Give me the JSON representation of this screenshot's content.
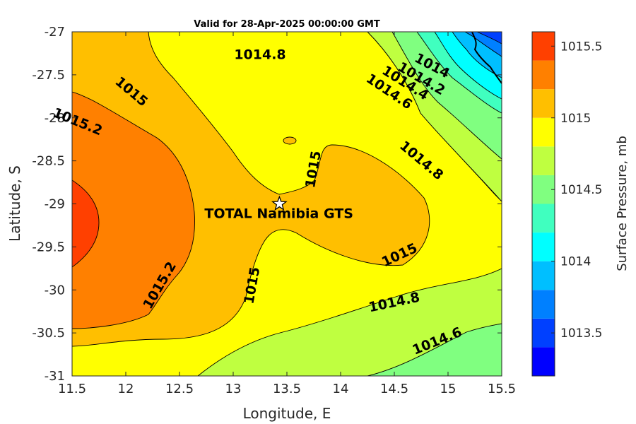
{
  "chart_data": {
    "type": "filled contour map",
    "title": "Valid for 28-Apr-2025 00:00:00 GMT",
    "xlabel": "Longitude, E",
    "ylabel": "Latitude, S",
    "xlim": [
      11.5,
      15.5
    ],
    "ylim": [
      -31,
      -27
    ],
    "xticks": [
      "11.5",
      "12",
      "12.5",
      "13",
      "13.5",
      "14",
      "14.5",
      "15",
      "15.5"
    ],
    "yticks": [
      "-27",
      "-27.5",
      "-28",
      "-28.5",
      "-29",
      "-29.5",
      "-30",
      "-30.5",
      "-31"
    ],
    "colorbar": {
      "label": "Surface Pressure, mb",
      "range": [
        1013.2,
        1015.6
      ],
      "ticks": [
        "1013.5",
        "1014",
        "1014.5",
        "1015",
        "1015.5"
      ],
      "levels": [
        {
          "from": 1013.2,
          "to": 1013.4,
          "color": "#0000ff"
        },
        {
          "from": 1013.4,
          "to": 1013.6,
          "color": "#0040ff"
        },
        {
          "from": 1013.6,
          "to": 1013.8,
          "color": "#0080ff"
        },
        {
          "from": 1013.8,
          "to": 1014.0,
          "color": "#00bfff"
        },
        {
          "from": 1014.0,
          "to": 1014.2,
          "color": "#00ffff"
        },
        {
          "from": 1014.2,
          "to": 1014.4,
          "color": "#40ffbf"
        },
        {
          "from": 1014.4,
          "to": 1014.6,
          "color": "#80ff80"
        },
        {
          "from": 1014.6,
          "to": 1014.8,
          "color": "#bfff40"
        },
        {
          "from": 1014.8,
          "to": 1015.0,
          "color": "#ffff00"
        },
        {
          "from": 1015.0,
          "to": 1015.2,
          "color": "#ffbf00"
        },
        {
          "from": 1015.2,
          "to": 1015.4,
          "color": "#ff8000"
        },
        {
          "from": 1015.4,
          "to": 1015.6,
          "color": "#ff4000"
        },
        {
          "from": 1015.6,
          "to": 1015.8,
          "color": "#ff0000"
        }
      ]
    },
    "contour_labels": [
      {
        "text": "1014.8",
        "lon": 13.25,
        "lat": -27.27
      },
      {
        "text": "1014",
        "lon": 14.85,
        "lat": -27.4
      },
      {
        "text": "1014.2",
        "lon": 14.75,
        "lat": -27.55
      },
      {
        "text": "1014.4",
        "lon": 14.6,
        "lat": -27.6
      },
      {
        "text": "1014.6",
        "lon": 14.45,
        "lat": -27.7
      },
      {
        "text": "1015",
        "lon": 12.05,
        "lat": -27.7
      },
      {
        "text": "1015.2",
        "lon": 11.55,
        "lat": -28.05
      },
      {
        "text": "1015",
        "lon": 13.75,
        "lat": -28.6
      },
      {
        "text": "1014.8",
        "lon": 14.75,
        "lat": -28.5
      },
      {
        "text": "1015",
        "lon": 14.55,
        "lat": -29.6
      },
      {
        "text": "1015.2",
        "lon": 12.32,
        "lat": -29.95
      },
      {
        "text": "1015",
        "lon": 13.18,
        "lat": -29.95
      },
      {
        "text": "1014.8",
        "lon": 14.5,
        "lat": -30.15
      },
      {
        "text": "1014.6",
        "lon": 14.9,
        "lat": -30.6
      }
    ],
    "site": {
      "name": "TOTAL Namibia GTS",
      "lon": 13.43,
      "lat": -29.0,
      "marker": "star"
    }
  }
}
